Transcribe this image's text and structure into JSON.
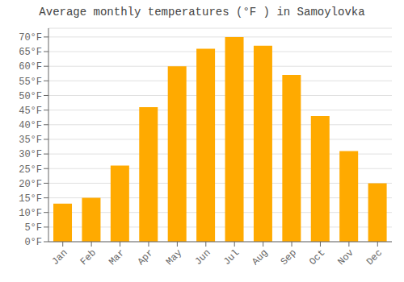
{
  "chart_data": {
    "type": "bar",
    "title": "Average monthly temperatures (°F ) in Samoylovka",
    "categories": [
      "Jan",
      "Feb",
      "Mar",
      "Apr",
      "May",
      "Jun",
      "Jul",
      "Aug",
      "Sep",
      "Oct",
      "Nov",
      "Dec"
    ],
    "values": [
      13,
      15,
      26,
      46,
      60,
      66,
      70,
      67,
      57,
      43,
      31,
      20
    ],
    "color": "#FFAA00",
    "ylim": [
      0,
      73
    ],
    "yticks": [
      {
        "value": 0,
        "label": "0°F"
      },
      {
        "value": 5,
        "label": "5°F"
      },
      {
        "value": 10,
        "label": "10°F"
      },
      {
        "value": 15,
        "label": "15°F"
      },
      {
        "value": 20,
        "label": "20°F"
      },
      {
        "value": 25,
        "label": "25°F"
      },
      {
        "value": 30,
        "label": "30°F"
      },
      {
        "value": 35,
        "label": "35°F"
      },
      {
        "value": 40,
        "label": "40°F"
      },
      {
        "value": 45,
        "label": "45°F"
      },
      {
        "value": 50,
        "label": "50°F"
      },
      {
        "value": 55,
        "label": "55°F"
      },
      {
        "value": 60,
        "label": "60°F"
      },
      {
        "value": 65,
        "label": "65°F"
      },
      {
        "value": 70,
        "label": "70°F"
      }
    ],
    "grid": true
  }
}
